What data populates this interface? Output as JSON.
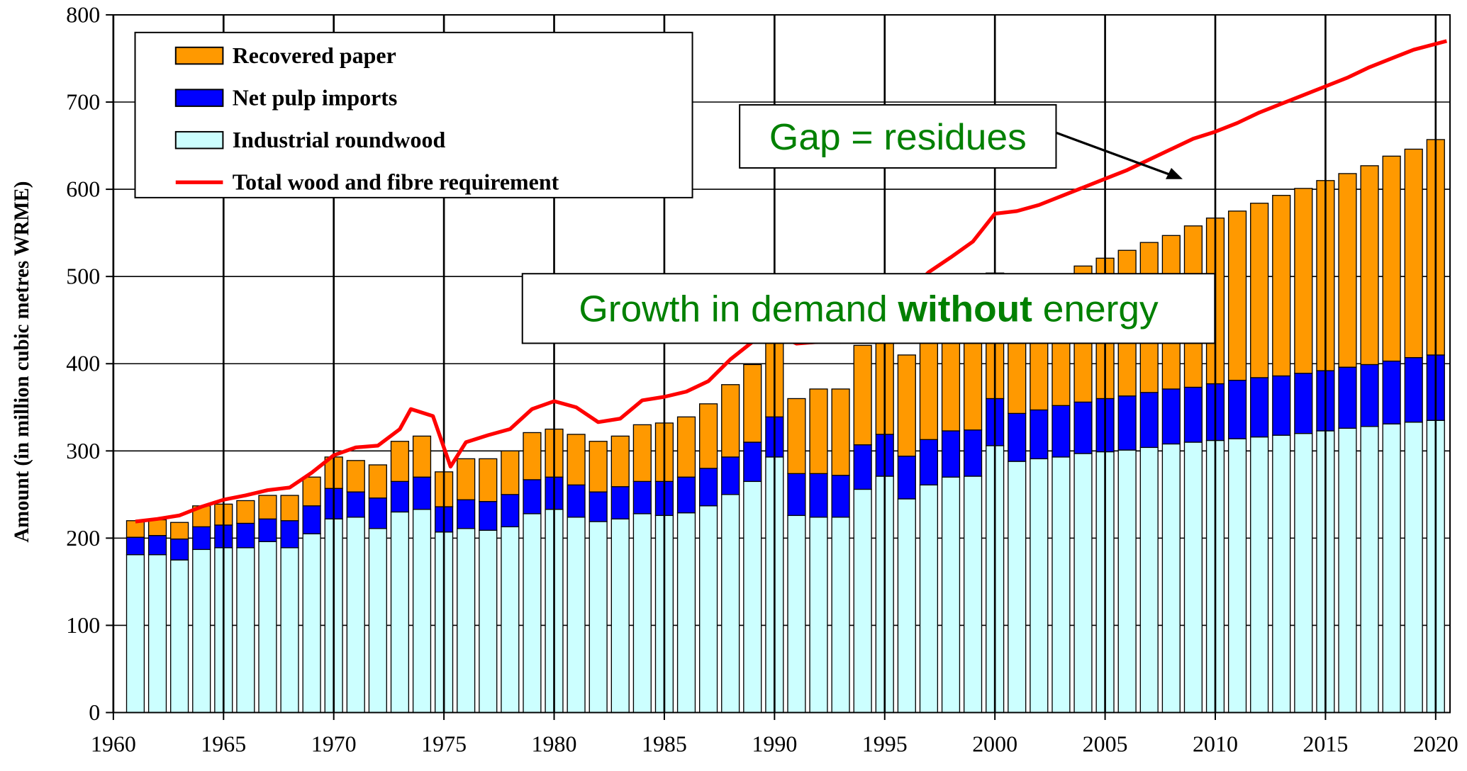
{
  "chart_data": {
    "type": "stacked-bar-line",
    "ylabel": "Amount (in million cubic metres WRME)",
    "x": [
      1961,
      1962,
      1963,
      1964,
      1965,
      1966,
      1967,
      1968,
      1969,
      1970,
      1971,
      1972,
      1973,
      1974,
      1975,
      1976,
      1977,
      1978,
      1979,
      1980,
      1981,
      1982,
      1983,
      1984,
      1985,
      1986,
      1987,
      1988,
      1989,
      1990,
      1991,
      1992,
      1993,
      1994,
      1995,
      1996,
      1997,
      1998,
      1999,
      2000,
      2001,
      2002,
      2003,
      2004,
      2005,
      2006,
      2007,
      2008,
      2009,
      2010,
      2011,
      2012,
      2013,
      2014,
      2015,
      2016,
      2017,
      2018,
      2019,
      2020
    ],
    "series": [
      {
        "name": "Industrial roundwood",
        "color": "#ccffff",
        "values": [
          181,
          181,
          175,
          187,
          189,
          189,
          196,
          189,
          205,
          222,
          224,
          211,
          230,
          233,
          207,
          211,
          209,
          213,
          228,
          233,
          224,
          219,
          222,
          228,
          226,
          229,
          237,
          250,
          265,
          293,
          226,
          224,
          224,
          256,
          271,
          245,
          261,
          270,
          271,
          306,
          288,
          291,
          293,
          297,
          299,
          301,
          304,
          308,
          310,
          312,
          314,
          316,
          318,
          320,
          323,
          326,
          328,
          331,
          333,
          335
        ]
      },
      {
        "name": "Net pulp imports",
        "color": "#0000ff",
        "values": [
          20,
          22,
          24,
          26,
          26,
          28,
          26,
          31,
          32,
          35,
          29,
          35,
          35,
          37,
          29,
          33,
          33,
          37,
          39,
          37,
          37,
          34,
          37,
          37,
          39,
          41,
          43,
          43,
          45,
          46,
          48,
          50,
          48,
          51,
          48,
          49,
          52,
          53,
          53,
          54,
          55,
          56,
          59,
          59,
          61,
          62,
          63,
          63,
          63,
          65,
          67,
          68,
          68,
          69,
          69,
          70,
          71,
          72,
          74,
          75
        ]
      },
      {
        "name": "Recovered paper",
        "color": "#ff9900",
        "values": [
          19,
          18,
          19,
          24,
          24,
          26,
          27,
          29,
          33,
          36,
          36,
          38,
          46,
          47,
          40,
          47,
          49,
          50,
          54,
          55,
          58,
          58,
          58,
          65,
          67,
          69,
          74,
          83,
          89,
          86,
          86,
          97,
          99,
          114,
          121,
          116,
          127,
          127,
          136,
          144,
          147,
          148,
          150,
          156,
          161,
          167,
          172,
          176,
          185,
          190,
          194,
          200,
          207,
          212,
          218,
          222,
          228,
          235,
          239,
          247
        ]
      }
    ],
    "line": {
      "name": "Total wood and fibre requirement",
      "color": "#ff0000",
      "x": [
        1961,
        1962,
        1963,
        1964,
        1965,
        1966,
        1967,
        1968,
        1969,
        1970,
        1971,
        1972,
        1973,
        1973.5,
        1974.5,
        1975.3,
        1976,
        1977,
        1978,
        1979,
        1980,
        1981,
        1982,
        1983,
        1984,
        1985,
        1986,
        1987,
        1988,
        1989,
        1990,
        1991,
        1992,
        1993,
        1994,
        1995,
        1996,
        1997,
        1998,
        1999,
        2000,
        2001,
        2002,
        2003,
        2004,
        2005,
        2006,
        2007,
        2008,
        2009,
        2010,
        2011,
        2012,
        2013,
        2014,
        2015,
        2016,
        2017,
        2018,
        2019,
        2020.5
      ],
      "values": [
        219,
        222,
        226,
        236,
        244,
        249,
        255,
        258,
        275,
        295,
        304,
        306,
        325,
        348,
        340,
        282,
        310,
        318,
        325,
        348,
        357,
        350,
        333,
        337,
        358,
        362,
        368,
        380,
        405,
        425,
        435,
        423,
        425,
        425,
        440,
        460,
        480,
        505,
        522,
        540,
        572,
        575,
        582,
        592,
        602,
        612,
        622,
        634,
        646,
        658,
        666,
        676,
        688,
        698,
        708,
        718,
        728,
        740,
        750,
        760,
        770
      ]
    },
    "xlim": [
      1960,
      2020.65
    ],
    "xticks": [
      1960,
      1965,
      1970,
      1975,
      1980,
      1985,
      1990,
      1995,
      2000,
      2005,
      2010,
      2015,
      2020
    ],
    "ylim": [
      0,
      800
    ],
    "yticks": [
      0,
      100,
      200,
      300,
      400,
      500,
      600,
      700,
      800
    ],
    "grid": true,
    "legend": "top-left",
    "annotations": [
      {
        "segments": [
          {
            "text": "Gap = residues"
          }
        ],
        "color": "#008000"
      },
      {
        "segments": [
          {
            "text": "Growth in demand "
          },
          {
            "text": "without",
            "bold": true
          },
          {
            "text": " energy"
          }
        ],
        "color": "#008000"
      }
    ]
  }
}
